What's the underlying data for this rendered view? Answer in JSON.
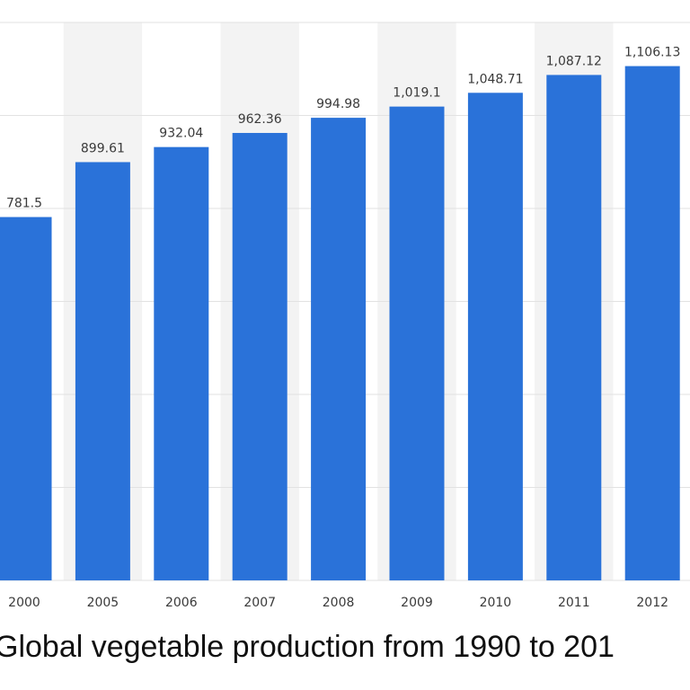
{
  "chart_data": {
    "type": "bar",
    "title": "Global vegetable production from 1990 to 201",
    "categories": [
      "2000",
      "2005",
      "2006",
      "2007",
      "2008",
      "2009",
      "2010",
      "2011",
      "2012"
    ],
    "values": [
      781.5,
      899.61,
      932.04,
      962.36,
      994.98,
      1019.1,
      1048.71,
      1087.12,
      1106.13
    ],
    "value_labels": [
      "781.5",
      "899.61",
      "932.04",
      "962.36",
      "994.98",
      "1,019.1",
      "1,048.71",
      "1,087.12",
      "1,106.13"
    ],
    "xlabel": "",
    "ylabel": "",
    "ylim": [
      0,
      1200
    ],
    "grid": true,
    "colors": {
      "bar": "#2a72d9",
      "band": "#f3f3f3",
      "grid": "#e2e2e2"
    }
  }
}
